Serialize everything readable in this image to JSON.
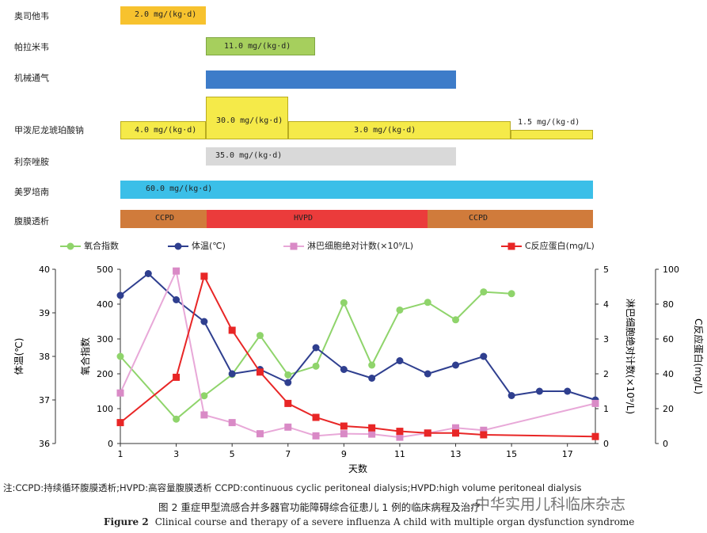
{
  "therapy": {
    "rows": [
      {
        "label": "奥司他韦",
        "segments": [
          {
            "text": "2.0 mg/(kg·d)",
            "color": "#f7c22e"
          }
        ]
      },
      {
        "label": "帕拉米韦",
        "segments": [
          {
            "text": "11.0 mg/(kg·d)",
            "color": "#a6cf5d"
          }
        ]
      },
      {
        "label": "机械通气",
        "segments": [
          {
            "text": "",
            "color": "#3d7cc9"
          }
        ]
      },
      {
        "label": "甲泼尼龙琥珀酸钠",
        "segments": [
          {
            "text": "4.0 mg/(kg·d)",
            "color": "#f5ea49"
          },
          {
            "text": "30.0 mg/(kg·d)",
            "color": "#f5ea49"
          },
          {
            "text": "3.0 mg/(kg·d)",
            "color": "#f5ea49"
          },
          {
            "text": "1.5 mg/(kg·d)",
            "color": "#f5ea49"
          }
        ]
      },
      {
        "label": "利奈唑胺",
        "segments": [
          {
            "text": "35.0 mg/(kg·d)",
            "color": "#d9d9d9"
          }
        ]
      },
      {
        "label": "美罗培南",
        "segments": [
          {
            "text": "60.0 mg/(kg·d)",
            "color": "#3bbfe8"
          }
        ]
      },
      {
        "label": "腹膜透析",
        "segments": [
          {
            "text": "CCPD",
            "color": "#d07b3b"
          },
          {
            "text": "HVPD",
            "color": "#eb3b3b"
          },
          {
            "text": "CCPD",
            "color": "#d07b3b"
          }
        ]
      }
    ]
  },
  "legend": {
    "oxygenation": "氧合指数",
    "temperature": "体温(℃)",
    "lymphocyte": "淋巴细胞绝对计数(×10⁹/L)",
    "crp": "C反应蛋白(mg/L)"
  },
  "chart_data": {
    "type": "line",
    "xlabel": "天数",
    "x_ticks": [
      1,
      3,
      5,
      7,
      9,
      11,
      13,
      15,
      17
    ],
    "x_range": [
      1,
      18
    ],
    "axes": {
      "temperature": {
        "label": "体温(℃)",
        "range": [
          36,
          40
        ],
        "ticks": [
          36,
          37,
          38,
          39,
          40
        ]
      },
      "oxygenation": {
        "label": "氧合指数",
        "range": [
          0,
          500
        ],
        "ticks": [
          0,
          100,
          200,
          300,
          400,
          500
        ]
      },
      "lymphocyte": {
        "label": "淋巴细胞绝对计数(×10⁹/L)",
        "range": [
          0,
          5
        ],
        "ticks": [
          0,
          1,
          2,
          3,
          4,
          5
        ]
      },
      "crp": {
        "label": "C反应蛋白(mg/L)",
        "range": [
          0,
          100
        ],
        "ticks": [
          0,
          20,
          40,
          60,
          80,
          100
        ]
      }
    },
    "series": [
      {
        "name": "氧合指数",
        "axis": "oxygenation",
        "color": "#8fd46b",
        "x": [
          1,
          3,
          4,
          5,
          6,
          7,
          8,
          9,
          10,
          11,
          12,
          13,
          14,
          15
        ],
        "values": [
          250,
          70,
          137,
          198,
          310,
          197,
          222,
          404,
          225,
          383,
          405,
          355,
          435,
          430
        ]
      },
      {
        "name": "体温(℃)",
        "axis": "temperature",
        "color": "#2f3f8f",
        "x": [
          1,
          2,
          3,
          4,
          5,
          6,
          7,
          8,
          9,
          10,
          11,
          12,
          13,
          14,
          15,
          16,
          17,
          18
        ],
        "values": [
          39.4,
          39.9,
          39.3,
          38.8,
          37.6,
          37.7,
          37.4,
          38.2,
          37.7,
          37.5,
          37.9,
          37.6,
          37.8,
          38.0,
          37.1,
          37.2,
          37.2,
          37.0
        ]
      },
      {
        "name": "淋巴细胞绝对计数(×10⁹/L)",
        "axis": "lymphocyte",
        "color": "#e8a8d8",
        "x": [
          1,
          3,
          4,
          5,
          6,
          7,
          8,
          9,
          10,
          11,
          12,
          13,
          14,
          18
        ],
        "values": [
          1.45,
          4.95,
          0.82,
          0.6,
          0.28,
          0.47,
          0.22,
          0.28,
          0.27,
          0.18,
          0.3,
          0.45,
          0.38,
          1.15
        ]
      },
      {
        "name": "C反应蛋白(mg/L)",
        "axis": "crp",
        "color": "#e82626",
        "x": [
          1,
          3,
          4,
          5,
          6,
          7,
          8,
          9,
          10,
          11,
          12,
          13,
          14,
          18
        ],
        "values": [
          12,
          38,
          96,
          65,
          41,
          23,
          15,
          10,
          9,
          7,
          6,
          6,
          5,
          4
        ]
      }
    ]
  },
  "footer": {
    "note": "注:CCPD:持续循环腹膜透析;HVPD:高容量腹膜透析   CCPD:continuous cyclic peritoneal dialysis;HVPD:high volume peritoneal dialysis",
    "caption_cn": "图 2   重症甲型流感合并多器官功能障碍综合征患儿 1 例的临床病程及治疗",
    "caption_en_label": "Figure 2",
    "caption_en": "Clinical course and therapy of a severe influenza A child with multiple organ dysfunction syndrome",
    "watermark": "中华实用儿科临床杂志"
  }
}
